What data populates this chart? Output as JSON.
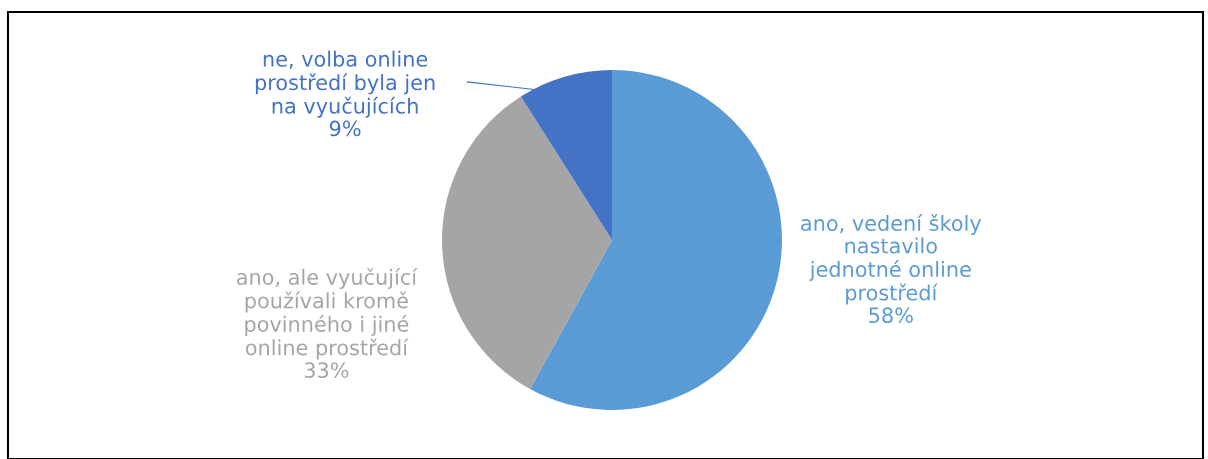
{
  "chart_data": {
    "type": "pie",
    "categories": [
      "ano, vedení školy\nnastavilo\njednotné online\nprostředí",
      "ano, ale vyučující\npoužívali kromě\npovinného i jiné\nonline prostředí",
      "ne, volba online\nprostředí byla jen\nna vyučujících"
    ],
    "values": [
      58,
      33,
      9
    ],
    "colors": [
      "#5b9bd5",
      "#a5a5a5",
      "#4472c4"
    ],
    "value_labels": [
      "58%",
      "33%",
      "9%"
    ]
  }
}
